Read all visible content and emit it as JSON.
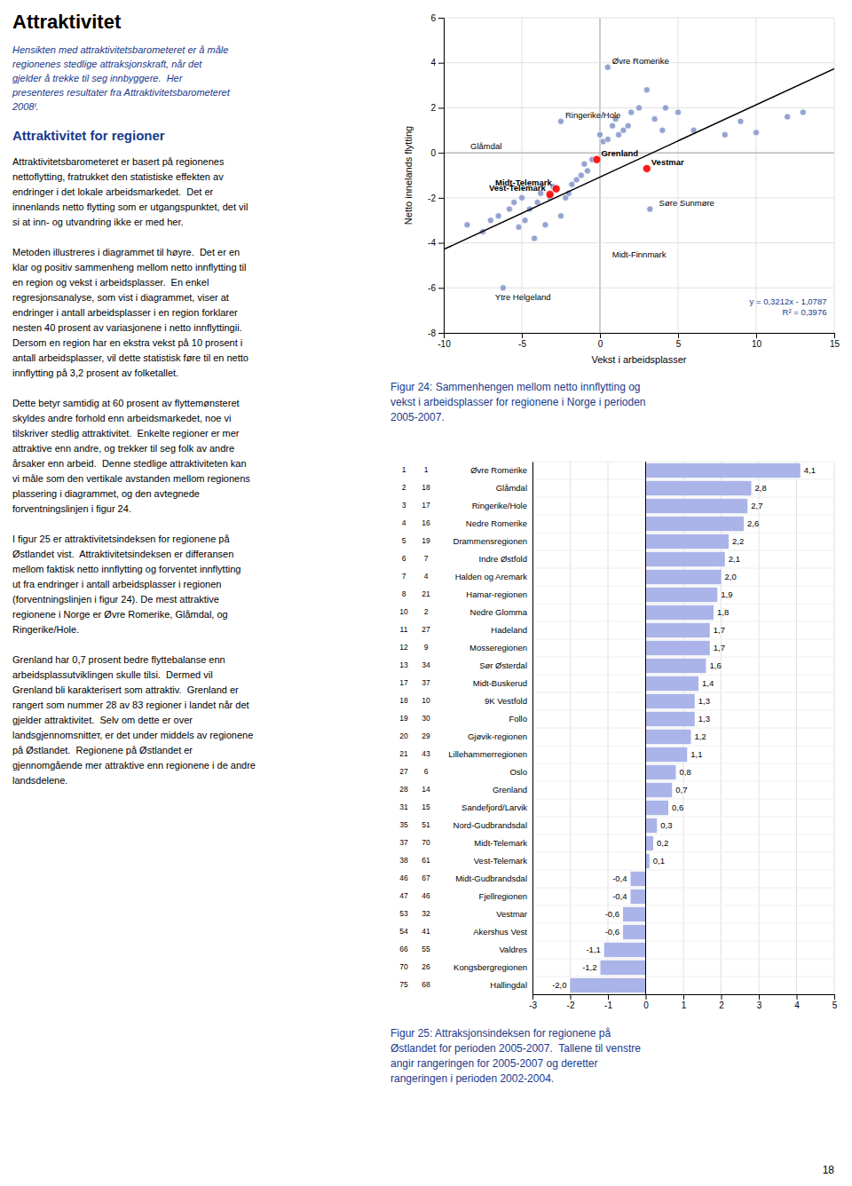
{
  "title": "Attraktivitet",
  "subtitle": "Hensikten med attraktivitetsbarometeret er å måle\nregionenes stedlige attraksjonskraft, når det\ngjelder å trekke til seg innbyggere.  Her\npresenteres resultater fra Attraktivitetsbarometeret\n2008ᴵ.",
  "heading": "Attraktivitet for regioner",
  "body": "Attraktivitetsbarometeret er basert på regionenes\nnettoflytting, fratrukket den statistiske effekten av\nendringer i det lokale arbeidsmarkedet.  Det er\ninnenlands netto flytting som er utgangspunktet, det vil\nsi at inn- og utvandring ikke er med her.\n\nMetoden illustreres i diagrammet til høyre.  Det er en\nklar og positiv sammenheng mellom netto innflytting til\nen region og vekst i arbeidsplasser.  En enkel\nregresjonsanalyse, som vist i diagrammet, viser at\nendringer i antall arbeidsplasser i en region forklarer\nnesten 40 prosent av variasjonene i netto innflyttingii.\nDersom en region har en ekstra vekst på 10 prosent i\nantall arbeidsplasser, vil dette statistisk føre til en netto\ninnflytting på 3,2 prosent av folketallet.\n\nDette betyr samtidig at 60 prosent av flyttemønsteret\nskyldes andre forhold enn arbeidsmarkedet, noe vi\ntilskriver stedlig attraktivitet.  Enkelte regioner er mer\nattraktive enn andre, og trekker til seg folk av andre\nårsaker enn arbeid.  Denne stedlige attraktiviteten kan\nvi måle som den vertikale avstanden mellom regionens\nplassering i diagrammet, og den avtegnede\nforventningslinjen i figur 24.\n\nI figur 25 er attraktivitetsindeksen for regionene på\nØstlandet vist.  Attraktivitetsindeksen er differansen\nmellom faktisk netto innflytting og forventet innflytting\nut fra endringer i antall arbeidsplasser i regionen\n(forventningslinjen i figur 24). De mest attraktive\nregionene i Norge er Øvre Romerike, Glåmdal, og\nRingerike/Hole.\n\nGrenland har 0,7 prosent bedre flyttebalanse enn\narbeidsplassutviklingen skulle tilsi.  Dermed vil\nGrenland bli karakterisert som attraktiv.  Grenland er\nrangert som nummer 28 av 83 regioner i landet når det\ngjelder attraktivitet.  Selv om dette er over\nlandsgjennomsnittет, er det under middels av regionene\npå Østlandet.  Regionene på Østlandet er\ngjennomgående mer attraktive enn regionene i de andre\nlandsdelene.",
  "page_number": "18",
  "chart_data": [
    {
      "type": "scatter",
      "caption": "Figur 24: Sammenhengen mellom netto innflytting og\nvekst i arbeidsplasser for regionene i Norge i perioden\n2005-2007.",
      "xlabel": "Vekst i arbeidsplasser",
      "ylabel": "Netto innelands flytting",
      "xlim": [
        -10,
        15
      ],
      "ylim": [
        -8,
        6
      ],
      "xticks": [
        -10,
        -5,
        0,
        5,
        10,
        15
      ],
      "yticks": [
        -8,
        -6,
        -4,
        -2,
        0,
        2,
        4,
        6
      ],
      "grid": true,
      "series": [
        {
          "type": "scatter",
          "color": "#8899cc",
          "x": [
            -8.5,
            -7.5,
            -7.0,
            -6.5,
            -6.2,
            -5.8,
            -5.5,
            -5.2,
            -5.0,
            -4.8,
            -4.5,
            -4.2,
            -4.0,
            -3.8,
            -3.5,
            -3.2,
            -3.0,
            -2.5,
            -2.2,
            -2.0,
            -1.8,
            -1.5,
            -1.2,
            -1.0,
            -0.8,
            -0.5,
            0.0,
            0.2,
            0.5,
            0.8,
            1.0,
            1.2,
            1.5,
            1.8,
            2.0,
            2.5,
            3.0,
            3.5,
            4.0,
            4.2,
            5.0,
            6.0,
            8.0,
            9.0,
            10.0,
            12.0,
            13.0,
            -2.5,
            3.2,
            0.5
          ],
          "values": [
            -3.2,
            -3.5,
            -3.0,
            -2.8,
            -6.0,
            -2.5,
            -2.2,
            -3.3,
            -2.0,
            -3.0,
            -2.5,
            -3.8,
            -2.2,
            -1.8,
            -3.2,
            -2.0,
            -1.5,
            -2.8,
            -2.0,
            -1.8,
            -1.4,
            -1.2,
            -1.0,
            -0.5,
            -0.8,
            -0.3,
            0.8,
            0.5,
            0.6,
            1.2,
            1.5,
            0.8,
            1.0,
            1.2,
            1.8,
            2.0,
            2.8,
            1.5,
            1.0,
            2.0,
            1.8,
            1.0,
            0.8,
            1.4,
            0.9,
            1.6,
            1.8,
            1.4,
            -2.5,
            3.8
          ]
        },
        {
          "type": "scatter",
          "color": "red",
          "x": [
            -0.2,
            3.0,
            -2.8,
            -3.2
          ],
          "values": [
            -0.3,
            -0.7,
            -1.6,
            -1.85
          ]
        },
        {
          "type": "line",
          "color": "black",
          "x": [
            -10,
            15
          ],
          "values": [
            -4.2907,
            3.7393
          ]
        }
      ],
      "annotations": [
        {
          "text": "Øvre Romerike",
          "x": 0.5,
          "y": 3.8,
          "align": "left"
        },
        {
          "text": "Ringerike/Hole",
          "x": -2.5,
          "y": 1.4,
          "align": "left"
        },
        {
          "text": "Glåmdal",
          "x": -6.0,
          "y": 0.0,
          "align": "right"
        },
        {
          "text": "Grenland",
          "x": -0.2,
          "y": -0.3,
          "align": "left"
        },
        {
          "text": "Vestmar",
          "x": 3.0,
          "y": -0.7,
          "align": "left"
        },
        {
          "text": "Midt-Telemark",
          "x": -2.8,
          "y": -1.6,
          "align": "right"
        },
        {
          "text": "Vest-Telemark",
          "x": -3.2,
          "y": -1.85,
          "align": "right"
        },
        {
          "text": "Søre Sunmøre",
          "x": 3.5,
          "y": -2.5,
          "align": "left"
        },
        {
          "text": "Midt-Finnmark",
          "x": 0.5,
          "y": -4.8,
          "align": "left"
        },
        {
          "text": "Ytre Helgeland",
          "x": -7.0,
          "y": -6.7,
          "align": "left"
        },
        {
          "text": "y = 0,3212x - 1,0787\nR² = 0,3976",
          "x": 14.8,
          "y": -6.8,
          "align": "right"
        }
      ]
    },
    {
      "type": "bar",
      "orientation": "horizontal",
      "caption": "Figur 25: Attraksjonsindeksen for regionene på\nØstlandet for perioden 2005-2007.  Tallene til venstre\nangir rangeringen for 2005-2007 og deretter\nrangeringen i perioden 2002-2004.",
      "categories": [
        "Øvre Romerike",
        "Glåmdal",
        "Ringerike/Hole",
        "Nedre Romerike",
        "Drammensregionen",
        "Indre Østfold",
        "Halden og Aremark",
        "Hamar-regionen",
        "Nedre Glomma",
        "Hadeland",
        "Mosseregionen",
        "Sør Østerdal",
        "Midt-Buskerud",
        "9K Vestfold",
        "Follo",
        "Gjøvik-regionen",
        "Lillehammerregionen",
        "Oslo",
        "Grenland",
        "Sandefjord/Larvik",
        "Nord-Gudbrandsdal",
        "Midt-Telemark",
        "Vest-Telemark",
        "Midt-Gudbrandsdal",
        "Fjellregionen",
        "Vestmar",
        "Akershus Vest",
        "Valdres",
        "Kongsbergregionen",
        "Hallingdal"
      ],
      "values": [
        4.1,
        2.8,
        2.7,
        2.6,
        2.2,
        2.1,
        2.0,
        1.9,
        1.8,
        1.7,
        1.7,
        1.6,
        1.4,
        1.3,
        1.3,
        1.2,
        1.1,
        0.8,
        0.7,
        0.6,
        0.3,
        0.2,
        0.1,
        -0.4,
        -0.4,
        -0.6,
        -0.6,
        -1.1,
        -1.2,
        -2.0
      ],
      "value_labels": [
        "4,1",
        "2,8",
        "2,7",
        "2,6",
        "2,2",
        "2,1",
        "2,0",
        "1,9",
        "1,8",
        "1,7",
        "1,7",
        "1,6",
        "1,4",
        "1,3",
        "1,3",
        "1,2",
        "1,1",
        "0,8",
        "0,7",
        "0,6",
        "0,3",
        "0,2",
        "0,1",
        "-0,4",
        "-0,4",
        "-0,6",
        "-0,6",
        "-1,1",
        "-1,2",
        "-2,0"
      ],
      "data_labels": true,
      "rank1": [
        1,
        2,
        3,
        4,
        5,
        6,
        7,
        8,
        10,
        11,
        12,
        13,
        17,
        18,
        19,
        20,
        21,
        27,
        28,
        31,
        35,
        37,
        38,
        46,
        47,
        53,
        54,
        66,
        70,
        75
      ],
      "rank2": [
        1,
        18,
        17,
        16,
        19,
        7,
        4,
        21,
        2,
        27,
        9,
        34,
        37,
        10,
        30,
        29,
        43,
        6,
        14,
        15,
        51,
        70,
        61,
        67,
        46,
        32,
        41,
        55,
        26,
        68
      ],
      "color": "#aab4e8",
      "xlim": [
        -3,
        5
      ],
      "xticks": [
        -3,
        -2,
        -1,
        0,
        1,
        2,
        3,
        4,
        5
      ],
      "grid": true
    }
  ]
}
